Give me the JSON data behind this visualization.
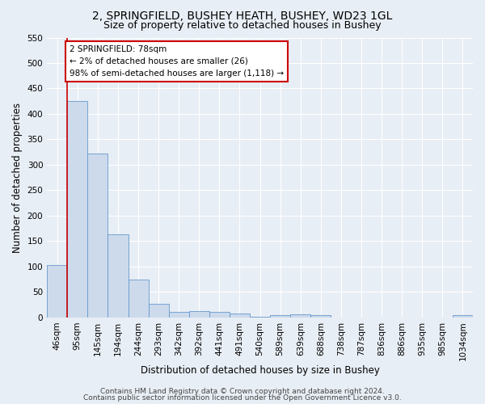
{
  "title1": "2, SPRINGFIELD, BUSHEY HEATH, BUSHEY, WD23 1GL",
  "title2": "Size of property relative to detached houses in Bushey",
  "xlabel": "Distribution of detached houses by size in Bushey",
  "ylabel": "Number of detached properties",
  "categories": [
    "46sqm",
    "95sqm",
    "145sqm",
    "194sqm",
    "244sqm",
    "293sqm",
    "342sqm",
    "392sqm",
    "441sqm",
    "491sqm",
    "540sqm",
    "589sqm",
    "639sqm",
    "688sqm",
    "738sqm",
    "787sqm",
    "836sqm",
    "886sqm",
    "935sqm",
    "985sqm",
    "1034sqm"
  ],
  "values": [
    103,
    425,
    322,
    163,
    75,
    27,
    11,
    13,
    11,
    8,
    2,
    5,
    6,
    4,
    0,
    0,
    0,
    0,
    0,
    0,
    5
  ],
  "bar_color": "#ccdaec",
  "bar_edge_color": "#6699cc",
  "annotation_line1": "2 SPRINGFIELD: 78sqm",
  "annotation_line2": "← 2% of detached houses are smaller (26)",
  "annotation_line3": "98% of semi-detached houses are larger (1,118) →",
  "annotation_box_color": "#ffffff",
  "annotation_box_edge_color": "#cc0000",
  "red_line_x": 0.5,
  "ylim": [
    0,
    550
  ],
  "yticks": [
    0,
    50,
    100,
    150,
    200,
    250,
    300,
    350,
    400,
    450,
    500,
    550
  ],
  "footer1": "Contains HM Land Registry data © Crown copyright and database right 2024.",
  "footer2": "Contains public sector information licensed under the Open Government Licence v3.0.",
  "bg_color": "#e8eef5",
  "plot_bg_color": "#e8eef5",
  "grid_color": "#ffffff",
  "title_fontsize": 10,
  "subtitle_fontsize": 9,
  "axis_label_fontsize": 8.5,
  "tick_fontsize": 7.5,
  "annot_fontsize": 7.5,
  "footer_fontsize": 6.5
}
